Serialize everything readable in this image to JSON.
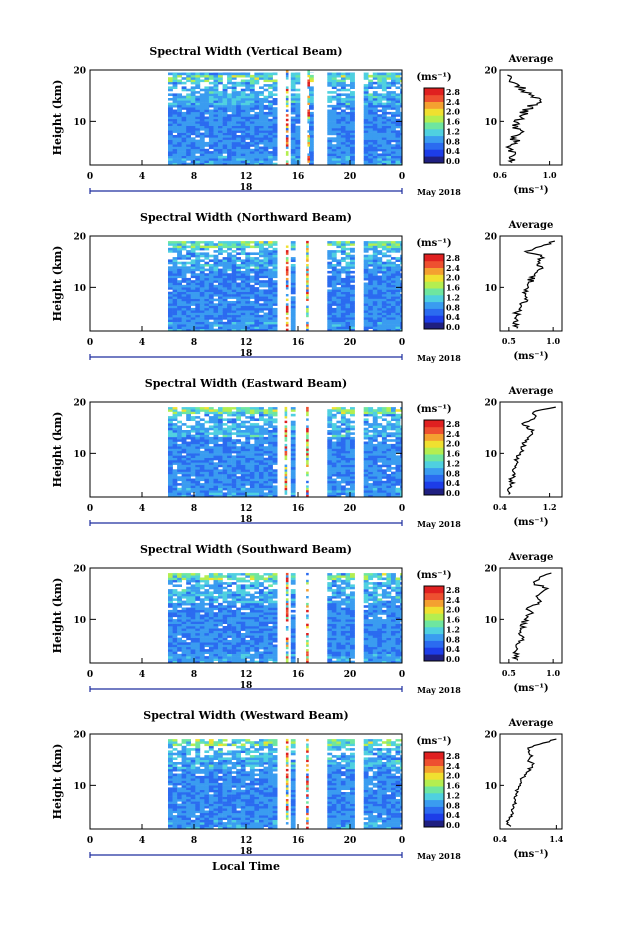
{
  "figure": {
    "xlabel": "Local Time",
    "date_label": "May 2018",
    "day_label": "18",
    "height_label": "Height (km)",
    "unit_label": "(ms⁻¹)",
    "avg_title": "Average",
    "x_ticks": [
      "0",
      "4",
      "8",
      "12",
      "16",
      "20",
      "0"
    ],
    "y_ticks": [
      "20",
      "10"
    ],
    "colorbar_ticks": [
      "2.8",
      "2.4",
      "2.0",
      "1.6",
      "1.2",
      "0.8",
      "0.4",
      "0.0"
    ],
    "colors": {
      "scale": [
        "#1f1f80",
        "#1d3de8",
        "#2b6bf0",
        "#3a9cf0",
        "#4fd0e0",
        "#6ee6a0",
        "#b4ee50",
        "#f0e030",
        "#f4a030",
        "#ee5030",
        "#e02020"
      ]
    }
  },
  "chart_data": [
    {
      "type": "heatmap",
      "title": "Spectral Width (Vertical Beam)",
      "xlabel": "Local Time",
      "ylabel": "Height (km)",
      "xlim": [
        0,
        24
      ],
      "ylim": [
        1.5,
        20
      ],
      "colorbar": {
        "label": "(ms⁻¹)",
        "range": [
          0.0,
          3.0
        ]
      },
      "data_time_range": [
        6,
        24
      ],
      "gaps": [
        [
          14.5,
          15.3
        ],
        [
          16.2,
          16.6
        ],
        [
          17.2,
          18.0
        ],
        [
          20.4,
          20.9
        ]
      ],
      "base_value": 0.5,
      "top_height": 19.5,
      "average_profile": {
        "title": "Average",
        "xlabel": "(ms⁻¹)",
        "xticks": [
          "0.6",
          "1.0"
        ],
        "xlim": [
          0.6,
          1.1
        ],
        "height": [
          2,
          3,
          4,
          5,
          6,
          7,
          8,
          9,
          10,
          11,
          12,
          13,
          14,
          15,
          16,
          17,
          18,
          19
        ],
        "value": [
          0.72,
          0.66,
          0.7,
          0.68,
          0.74,
          0.7,
          0.76,
          0.72,
          0.74,
          0.78,
          0.8,
          0.86,
          0.96,
          0.84,
          0.8,
          0.74,
          0.7,
          0.66
        ]
      }
    },
    {
      "type": "heatmap",
      "title": "Spectral Width (Northward Beam)",
      "xlabel": "Local Time",
      "ylabel": "Height (km)",
      "xlim": [
        0,
        24
      ],
      "ylim": [
        1.5,
        20
      ],
      "colorbar": {
        "label": "(ms⁻¹)",
        "range": [
          0.0,
          3.0
        ]
      },
      "data_time_range": [
        6,
        24
      ],
      "gaps": [
        [
          14.5,
          15.3
        ],
        [
          16.1,
          16.5
        ],
        [
          17.1,
          18.0
        ],
        [
          20.5,
          21.0
        ]
      ],
      "base_value": 0.45,
      "top_height": 19.0,
      "average_profile": {
        "title": "Average",
        "xlabel": "(ms⁻¹)",
        "xticks": [
          "0.5",
          "1.0"
        ],
        "xlim": [
          0.4,
          1.1
        ],
        "height": [
          2,
          3,
          4,
          5,
          6,
          7,
          8,
          9,
          10,
          11,
          12,
          13,
          14,
          15,
          16,
          17,
          18,
          19
        ],
        "value": [
          0.62,
          0.56,
          0.6,
          0.58,
          0.62,
          0.66,
          0.7,
          0.66,
          0.72,
          0.74,
          0.76,
          0.82,
          0.86,
          0.8,
          0.9,
          0.7,
          0.86,
          1.02
        ]
      }
    },
    {
      "type": "heatmap",
      "title": "Spectral Width (Eastward Beam)",
      "xlabel": "Local Time",
      "ylabel": "Height (km)",
      "xlim": [
        0,
        24
      ],
      "ylim": [
        1.5,
        20
      ],
      "colorbar": {
        "label": "(ms⁻¹)",
        "range": [
          0.0,
          3.0
        ]
      },
      "data_time_range": [
        6,
        24
      ],
      "gaps": [
        [
          14.6,
          15.2
        ],
        [
          16.1,
          16.5
        ],
        [
          17.1,
          18.0
        ],
        [
          20.5,
          21.0
        ]
      ],
      "base_value": 0.5,
      "top_height": 19.0,
      "average_profile": {
        "title": "Average",
        "xlabel": "(ms⁻¹)",
        "xticks": [
          "0.4",
          "1.2"
        ],
        "xlim": [
          0.4,
          1.4
        ],
        "height": [
          2,
          3,
          4,
          5,
          6,
          7,
          8,
          9,
          10,
          11,
          12,
          13,
          14,
          15,
          16,
          17,
          18,
          19
        ],
        "value": [
          0.56,
          0.52,
          0.6,
          0.58,
          0.64,
          0.62,
          0.7,
          0.66,
          0.72,
          0.76,
          0.8,
          0.86,
          0.96,
          0.84,
          0.78,
          1.0,
          0.9,
          1.3
        ]
      }
    },
    {
      "type": "heatmap",
      "title": "Spectral Width (Southward Beam)",
      "xlabel": "Local Time",
      "ylabel": "Height (km)",
      "xlim": [
        0,
        24
      ],
      "ylim": [
        1.5,
        20
      ],
      "colorbar": {
        "label": "(ms⁻¹)",
        "range": [
          0.0,
          3.0
        ]
      },
      "data_time_range": [
        6,
        24
      ],
      "gaps": [
        [
          14.5,
          15.3
        ],
        [
          16.1,
          16.5
        ],
        [
          17.1,
          18.0
        ],
        [
          20.5,
          21.0
        ]
      ],
      "base_value": 0.5,
      "top_height": 19.0,
      "average_profile": {
        "title": "Average",
        "xlabel": "(ms⁻¹)",
        "xticks": [
          "0.5",
          "1.0"
        ],
        "xlim": [
          0.4,
          1.1
        ],
        "height": [
          2,
          3,
          4,
          5,
          6,
          7,
          8,
          9,
          10,
          11,
          12,
          13,
          14,
          15,
          16,
          17,
          18,
          19
        ],
        "value": [
          0.6,
          0.56,
          0.62,
          0.58,
          0.64,
          0.62,
          0.66,
          0.64,
          0.7,
          0.74,
          0.72,
          0.8,
          0.86,
          0.82,
          0.92,
          0.78,
          0.84,
          0.98
        ]
      }
    },
    {
      "type": "heatmap",
      "title": "Spectral Width (Westward Beam)",
      "xlabel": "Local Time",
      "ylabel": "Height (km)",
      "xlim": [
        0,
        24
      ],
      "ylim": [
        1.5,
        20
      ],
      "colorbar": {
        "label": "(ms⁻¹)",
        "range": [
          0.0,
          3.0
        ]
      },
      "data_time_range": [
        6,
        24
      ],
      "gaps": [
        [
          14.5,
          15.3
        ],
        [
          16.1,
          16.5
        ],
        [
          17.1,
          18.0
        ],
        [
          20.5,
          21.0
        ]
      ],
      "base_value": 0.5,
      "top_height": 19.0,
      "average_profile": {
        "title": "Average",
        "xlabel": "(ms⁻¹)",
        "xticks": [
          "0.4",
          "1.4"
        ],
        "xlim": [
          0.4,
          1.5
        ],
        "height": [
          2,
          3,
          4,
          5,
          6,
          7,
          8,
          9,
          10,
          11,
          12,
          13,
          14,
          15,
          16,
          17,
          18,
          19
        ],
        "value": [
          0.58,
          0.54,
          0.62,
          0.6,
          0.66,
          0.64,
          0.7,
          0.68,
          0.74,
          0.78,
          0.82,
          0.92,
          1.0,
          0.9,
          0.96,
          0.88,
          1.08,
          1.4
        ]
      }
    }
  ]
}
